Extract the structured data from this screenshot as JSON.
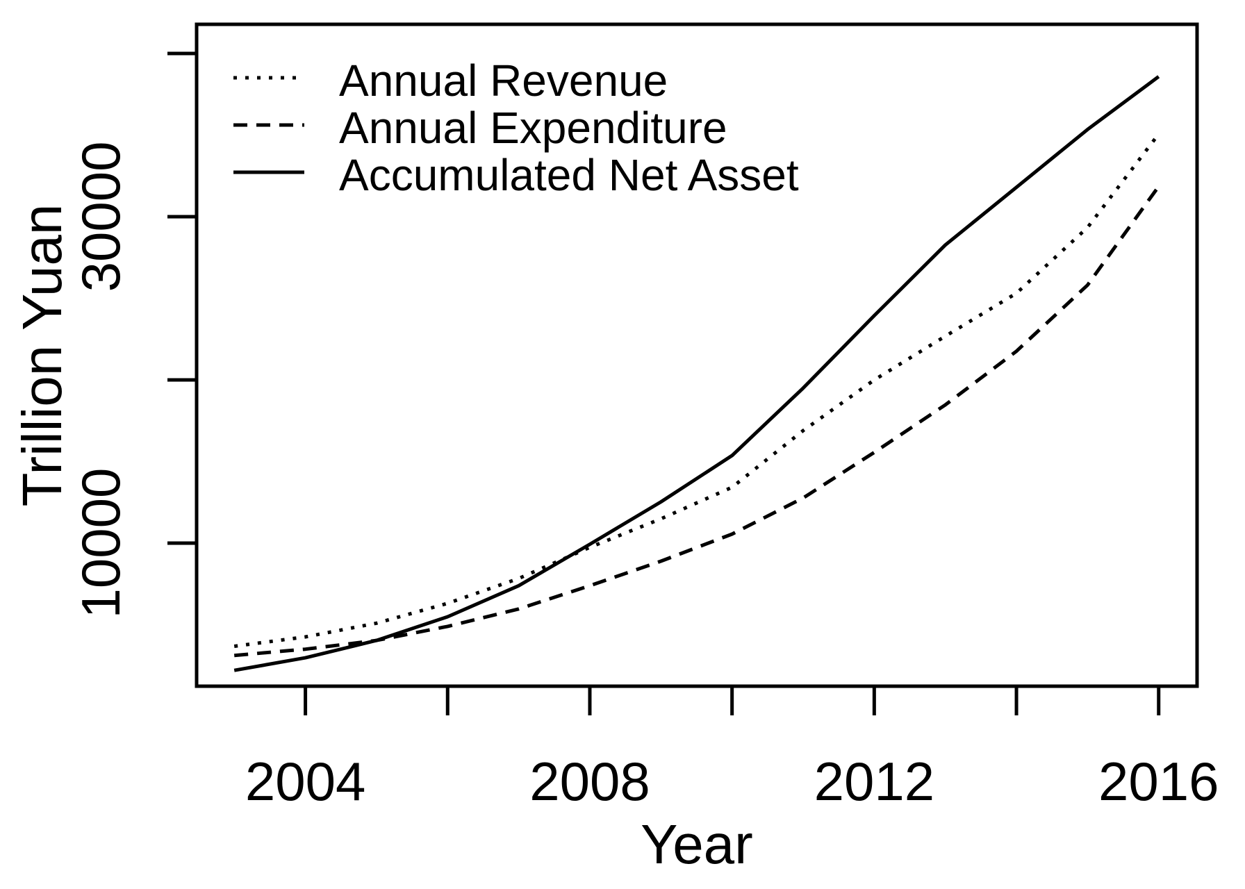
{
  "figure": {
    "background": "#ffffff",
    "ink": "#000000"
  },
  "chart_data": {
    "type": "line",
    "title": "",
    "xlabel": "Year",
    "ylabel": "Trillion Yuan",
    "x": [
      2003,
      2004,
      2005,
      2006,
      2007,
      2008,
      2009,
      2010,
      2011,
      2012,
      2013,
      2014,
      2015,
      2016
    ],
    "series": [
      {
        "name": "Annual Revenue",
        "line_style": "dotted",
        "values": [
          3680,
          4258,
          5093,
          6310,
          7834,
          9740,
          11491,
          13420,
          16895,
          20001,
          22680,
          25310,
          29341,
          35058
        ]
      },
      {
        "name": "Annual Expenditure",
        "line_style": "dashed",
        "values": [
          3122,
          3502,
          4040,
          4897,
          5965,
          7390,
          8894,
          10555,
          12765,
          15562,
          18470,
          21755,
          25813,
          31854
        ]
      },
      {
        "name": "Accumulated Net Asset",
        "line_style": "solid",
        "values": [
          2207,
          2975,
          4041,
          5489,
          7391,
          9931,
          12526,
          15365,
          19497,
          23941,
          28269,
          31800,
          35345,
          38580
        ]
      }
    ],
    "x_ticks": [
      2004,
      2006,
      2008,
      2010,
      2012,
      2014,
      2016
    ],
    "x_tick_labels": [
      "2004",
      "",
      "2008",
      "",
      "2012",
      "",
      "2016"
    ],
    "y_ticks": [
      10000,
      20000,
      30000,
      40000
    ],
    "y_tick_labels": [
      "10000",
      "",
      "30000",
      ""
    ],
    "xlim": [
      2002.47,
      2016.54
    ],
    "ylim": [
      1235,
      41785
    ],
    "grid": false,
    "legend_position": "top-left"
  }
}
